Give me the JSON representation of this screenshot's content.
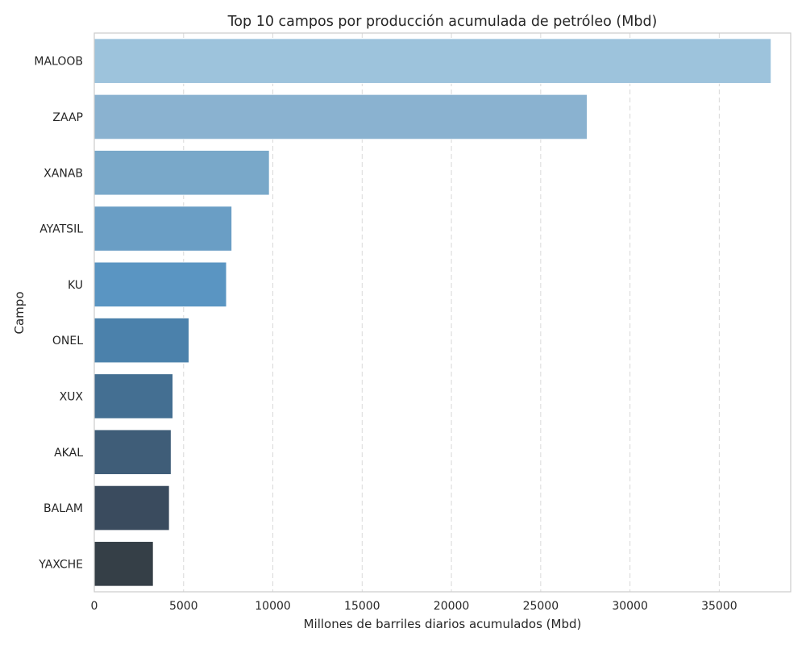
{
  "chart_data": {
    "type": "bar",
    "orientation": "horizontal",
    "title": "Top 10 campos por producción acumulada de petróleo (Mbd)",
    "xlabel": "Millones de barriles diarios acumulados (Mbd)",
    "ylabel": "Campo",
    "categories": [
      "MALOOB",
      "ZAAP",
      "XANAB",
      "AYATSIL",
      "KU",
      "ONEL",
      "XUX",
      "AKAL",
      "BALAM",
      "YAXCHE"
    ],
    "values": [
      37900,
      27600,
      9800,
      7700,
      7400,
      5300,
      4400,
      4300,
      4200,
      3300
    ],
    "colors": [
      "#9dc3dc",
      "#8ab2d0",
      "#79a8c9",
      "#6a9ec5",
      "#5a95c2",
      "#4b81ab",
      "#446f92",
      "#3f5d78",
      "#3a4b5e",
      "#353f47"
    ],
    "xlim": [
      0,
      39000
    ],
    "xticks": [
      0,
      5000,
      10000,
      15000,
      20000,
      25000,
      30000,
      35000
    ],
    "xtick_labels": [
      "0",
      "5000",
      "10000",
      "15000",
      "20000",
      "25000",
      "30000",
      "35000"
    ],
    "grid": "x-dashed",
    "legend": "none"
  }
}
